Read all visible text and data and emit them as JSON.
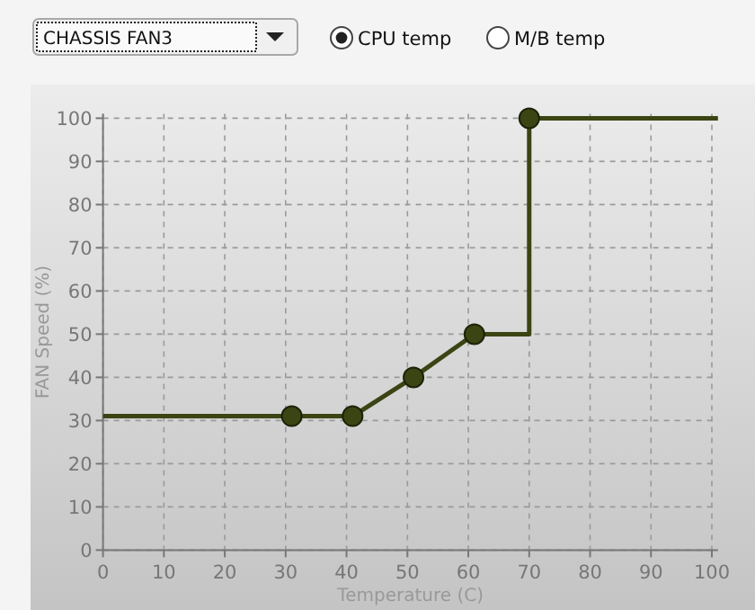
{
  "chart_data": {
    "type": "line",
    "xlabel": "Temperature (C)",
    "ylabel": "FAN Speed (%)",
    "annotations": [
      "CHASSIS FAN3",
      "CPU temp",
      "M/B temp"
    ],
    "series": [
      {
        "type": "line",
        "color": "#3b4514",
        "marker": "none",
        "x": [
          0,
          31,
          41,
          51,
          61,
          70,
          70,
          101
        ],
        "values": [
          31,
          31,
          31,
          40,
          50,
          50,
          100,
          100
        ]
      },
      {
        "type": "scatter",
        "color": "#3b4514",
        "marker": "circle",
        "x": [
          31,
          41,
          51,
          61,
          70
        ],
        "values": [
          31,
          31,
          40,
          50,
          100
        ]
      }
    ],
    "xlim": [
      0,
      101
    ],
    "ylim": [
      0,
      101
    ],
    "xticks": [
      0,
      10,
      20,
      30,
      40,
      50,
      60,
      70,
      80,
      90,
      100
    ],
    "yticks": [
      0,
      10,
      20,
      30,
      40,
      50,
      60,
      70,
      80,
      90,
      100
    ],
    "grid": true
  }
}
